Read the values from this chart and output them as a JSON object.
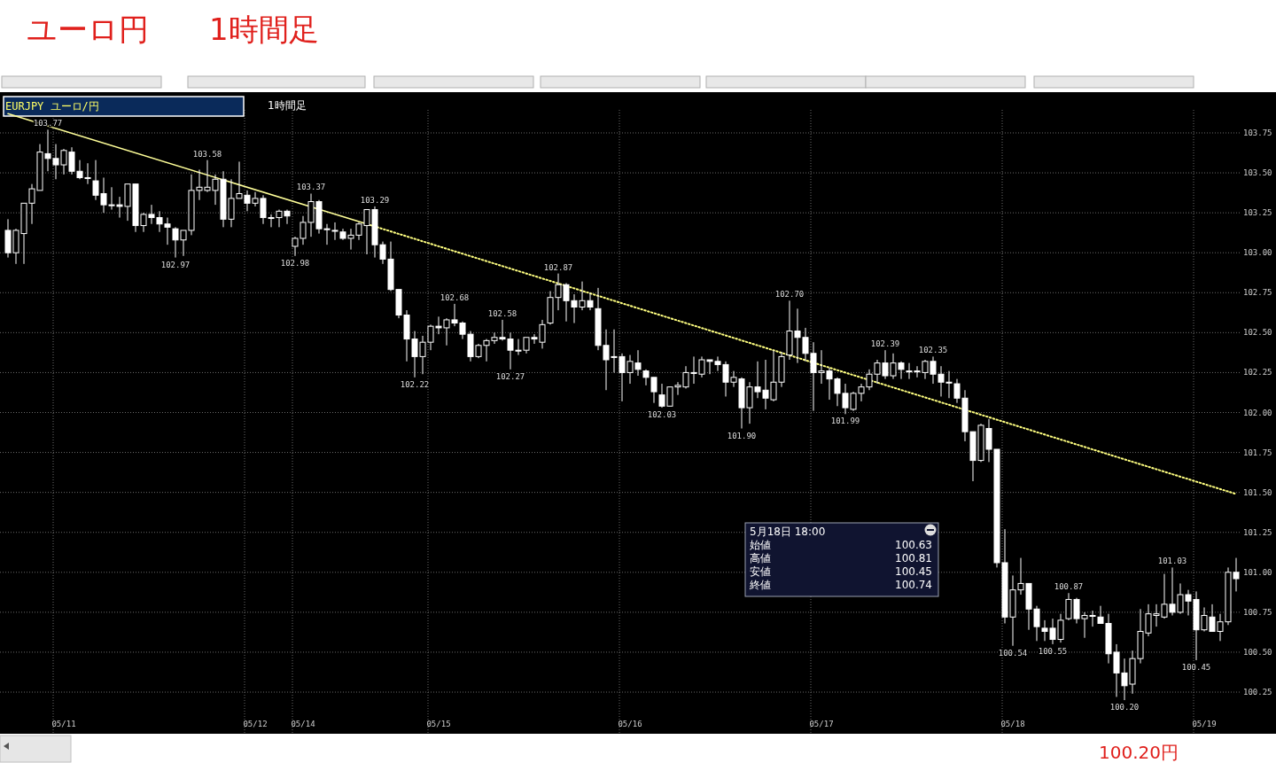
{
  "chart_data": {
    "type": "candlestick",
    "title": "ユーロ円　　1時間足",
    "annotations": [
      "EURJPY ユーロ/円",
      "1時間足",
      "5月18日 18:00",
      "始値 100.63",
      "高値 100.81",
      "安値 100.45",
      "終値 100.74",
      "100.20円"
    ],
    "categories": [
      null,
      null,
      null,
      null,
      null,
      null,
      null,
      "05/11",
      null,
      null,
      null,
      null,
      null,
      null,
      null,
      null,
      null,
      null,
      null,
      null,
      null,
      null,
      null,
      null,
      null,
      null,
      null,
      null,
      null,
      null,
      null,
      "05/12",
      null,
      null,
      null,
      null,
      null,
      "05/14",
      null,
      null,
      null,
      null,
      null,
      null,
      null,
      null,
      null,
      null,
      null,
      null,
      null,
      null,
      null,
      null,
      "05/15",
      null,
      null,
      null,
      null,
      null,
      null,
      null,
      null,
      null,
      null,
      null,
      null,
      null,
      null,
      null,
      null,
      null,
      null,
      null,
      null,
      null,
      null,
      null,
      "05/16",
      null,
      null,
      null,
      null,
      null,
      null,
      null,
      null,
      null,
      null,
      null,
      null,
      null,
      null,
      null,
      null,
      null,
      null,
      null,
      null,
      null,
      null,
      null,
      "05/17",
      null,
      null,
      null,
      null,
      null,
      null,
      null,
      null,
      null,
      null,
      null,
      null,
      null,
      null,
      null,
      null,
      null,
      null,
      null,
      null,
      null,
      null,
      null,
      "05/18",
      null,
      null,
      null,
      null,
      null,
      null,
      null,
      null,
      null,
      null,
      null,
      null,
      null,
      null,
      null,
      null,
      null,
      null,
      null,
      null,
      null,
      null,
      null,
      "05/19",
      null,
      null,
      null,
      null
    ],
    "color": "#ffffff",
    "ohlc": [
      [
        103.14,
        103.21,
        102.97,
        103.0
      ],
      [
        103.0,
        103.15,
        102.93,
        103.14
      ],
      [
        103.12,
        103.31,
        102.93,
        103.31
      ],
      [
        103.31,
        103.43,
        103.18,
        103.4
      ],
      [
        103.39,
        103.68,
        103.39,
        103.63
      ],
      [
        103.62,
        103.77,
        103.51,
        103.59
      ],
      [
        103.59,
        103.68,
        103.46,
        103.55
      ],
      [
        103.55,
        103.65,
        103.49,
        103.64
      ],
      [
        103.63,
        103.66,
        103.49,
        103.51
      ],
      [
        103.51,
        103.58,
        103.46,
        103.47
      ],
      [
        103.47,
        103.56,
        103.43,
        103.47
      ],
      [
        103.45,
        103.58,
        103.33,
        103.36
      ],
      [
        103.37,
        103.47,
        103.25,
        103.3
      ],
      [
        103.3,
        103.41,
        103.27,
        103.3
      ],
      [
        103.3,
        103.35,
        103.22,
        103.29
      ],
      [
        103.29,
        103.43,
        103.2,
        103.43
      ],
      [
        103.43,
        103.43,
        103.13,
        103.17
      ],
      [
        103.17,
        103.25,
        103.13,
        103.24
      ],
      [
        103.24,
        103.3,
        103.18,
        103.22
      ],
      [
        103.22,
        103.26,
        103.13,
        103.18
      ],
      [
        103.18,
        103.22,
        103.05,
        103.16
      ],
      [
        103.15,
        103.16,
        102.97,
        103.08
      ],
      [
        103.08,
        103.14,
        102.98,
        103.14
      ],
      [
        103.14,
        103.49,
        103.11,
        103.39
      ],
      [
        103.39,
        103.52,
        103.33,
        103.41
      ],
      [
        103.39,
        103.58,
        103.38,
        103.41
      ],
      [
        103.39,
        103.49,
        103.3,
        103.46
      ],
      [
        103.46,
        103.51,
        103.16,
        103.21
      ],
      [
        103.21,
        103.46,
        103.16,
        103.34
      ],
      [
        103.34,
        103.57,
        103.34,
        103.37
      ],
      [
        103.36,
        103.39,
        103.26,
        103.31
      ],
      [
        103.31,
        103.38,
        103.29,
        103.34
      ],
      [
        103.34,
        103.36,
        103.18,
        103.22
      ],
      [
        103.22,
        103.24,
        103.16,
        103.22
      ],
      [
        103.22,
        103.27,
        103.16,
        103.26
      ],
      [
        103.26,
        103.27,
        103.18,
        103.23
      ],
      [
        103.04,
        103.1,
        102.98,
        103.09
      ],
      [
        103.09,
        103.23,
        103.05,
        103.19
      ],
      [
        103.19,
        103.37,
        103.1,
        103.32
      ],
      [
        103.32,
        103.33,
        103.12,
        103.15
      ],
      [
        103.15,
        103.18,
        103.05,
        103.15
      ],
      [
        103.14,
        103.19,
        103.08,
        103.14
      ],
      [
        103.13,
        103.15,
        103.08,
        103.09
      ],
      [
        103.09,
        103.15,
        103.02,
        103.11
      ],
      [
        103.11,
        103.19,
        103.08,
        103.18
      ],
      [
        103.17,
        103.27,
        102.99,
        103.27
      ],
      [
        103.27,
        103.29,
        102.97,
        103.05
      ],
      [
        103.05,
        103.07,
        102.93,
        102.96
      ],
      [
        102.96,
        103.07,
        102.76,
        102.77
      ],
      [
        102.77,
        102.77,
        102.59,
        102.61
      ],
      [
        102.61,
        102.64,
        102.32,
        102.46
      ],
      [
        102.46,
        102.51,
        102.22,
        102.35
      ],
      [
        102.35,
        102.48,
        102.24,
        102.44
      ],
      [
        102.44,
        102.55,
        102.39,
        102.54
      ],
      [
        102.54,
        102.6,
        102.49,
        102.53
      ],
      [
        102.53,
        102.59,
        102.42,
        102.58
      ],
      [
        102.58,
        102.68,
        102.54,
        102.56
      ],
      [
        102.56,
        102.57,
        102.46,
        102.49
      ],
      [
        102.49,
        102.51,
        102.32,
        102.35
      ],
      [
        102.35,
        102.43,
        102.34,
        102.42
      ],
      [
        102.42,
        102.46,
        102.32,
        102.45
      ],
      [
        102.45,
        102.5,
        102.43,
        102.47
      ],
      [
        102.47,
        102.58,
        102.45,
        102.46
      ],
      [
        102.46,
        102.5,
        102.27,
        102.39
      ],
      [
        102.39,
        102.46,
        102.36,
        102.39
      ],
      [
        102.39,
        102.47,
        102.37,
        102.47
      ],
      [
        102.47,
        102.49,
        102.43,
        102.46
      ],
      [
        102.44,
        102.58,
        102.4,
        102.55
      ],
      [
        102.56,
        102.76,
        102.55,
        102.72
      ],
      [
        102.72,
        102.87,
        102.64,
        102.8
      ],
      [
        102.8,
        102.81,
        102.57,
        102.7
      ],
      [
        102.7,
        102.74,
        102.56,
        102.66
      ],
      [
        102.66,
        102.82,
        102.64,
        102.7
      ],
      [
        102.7,
        102.75,
        102.64,
        102.66
      ],
      [
        102.65,
        102.78,
        102.39,
        102.42
      ],
      [
        102.42,
        102.52,
        102.14,
        102.33
      ],
      [
        102.35,
        102.52,
        102.25,
        102.35
      ],
      [
        102.35,
        102.37,
        102.07,
        102.25
      ],
      [
        102.25,
        102.36,
        102.18,
        102.32
      ],
      [
        102.31,
        102.39,
        102.23,
        102.27
      ],
      [
        102.26,
        102.27,
        102.17,
        102.22
      ],
      [
        102.22,
        102.22,
        102.06,
        102.13
      ],
      [
        102.11,
        102.18,
        102.03,
        102.04
      ],
      [
        102.04,
        102.16,
        102.04,
        102.16
      ],
      [
        102.16,
        102.19,
        102.11,
        102.17
      ],
      [
        102.16,
        102.29,
        102.15,
        102.25
      ],
      [
        102.25,
        102.35,
        102.18,
        102.25
      ],
      [
        102.24,
        102.35,
        102.22,
        102.33
      ],
      [
        102.33,
        102.33,
        102.24,
        102.32
      ],
      [
        102.32,
        102.35,
        102.26,
        102.3
      ],
      [
        102.3,
        102.32,
        102.1,
        102.19
      ],
      [
        102.19,
        102.26,
        102.16,
        102.22
      ],
      [
        102.21,
        102.22,
        101.9,
        102.03
      ],
      [
        102.03,
        102.19,
        101.93,
        102.16
      ],
      [
        102.16,
        102.32,
        102.09,
        102.13
      ],
      [
        102.14,
        102.33,
        102.02,
        102.09
      ],
      [
        102.08,
        102.39,
        102.07,
        102.19
      ],
      [
        102.19,
        102.38,
        102.16,
        102.35
      ],
      [
        102.36,
        102.7,
        102.33,
        102.51
      ],
      [
        102.51,
        102.65,
        102.31,
        102.47
      ],
      [
        102.47,
        102.53,
        102.32,
        102.37
      ],
      [
        102.37,
        102.44,
        102.01,
        102.25
      ],
      [
        102.25,
        102.39,
        102.18,
        102.26
      ],
      [
        102.26,
        102.28,
        102.08,
        102.21
      ],
      [
        102.21,
        102.22,
        102.04,
        102.12
      ],
      [
        102.12,
        102.18,
        101.99,
        102.03
      ],
      [
        102.02,
        102.13,
        102.01,
        102.12
      ],
      [
        102.12,
        102.18,
        102.07,
        102.16
      ],
      [
        102.16,
        102.27,
        102.14,
        102.24
      ],
      [
        102.24,
        102.33,
        102.18,
        102.31
      ],
      [
        102.31,
        102.39,
        102.21,
        102.23
      ],
      [
        102.23,
        102.37,
        102.21,
        102.31
      ],
      [
        102.31,
        102.32,
        102.21,
        102.27
      ],
      [
        102.26,
        102.31,
        102.21,
        102.26
      ],
      [
        102.26,
        102.29,
        102.22,
        102.26
      ],
      [
        102.25,
        102.33,
        102.21,
        102.32
      ],
      [
        102.32,
        102.35,
        102.18,
        102.24
      ],
      [
        102.24,
        102.29,
        102.1,
        102.19
      ],
      [
        102.19,
        102.26,
        102.09,
        102.19
      ],
      [
        102.18,
        102.21,
        102.06,
        102.09
      ],
      [
        102.09,
        102.14,
        101.82,
        101.88
      ],
      [
        101.88,
        101.88,
        101.57,
        101.7
      ],
      [
        101.7,
        101.93,
        101.69,
        101.92
      ],
      [
        101.9,
        101.96,
        101.69,
        101.77
      ],
      [
        101.77,
        101.77,
        101.03,
        101.06
      ],
      [
        101.06,
        101.27,
        100.68,
        100.72
      ],
      [
        100.72,
        100.98,
        100.54,
        100.89
      ],
      [
        100.89,
        101.09,
        100.86,
        100.93
      ],
      [
        100.93,
        100.93,
        100.64,
        100.77
      ],
      [
        100.77,
        100.79,
        100.57,
        100.66
      ],
      [
        100.65,
        100.7,
        100.57,
        100.63
      ],
      [
        100.65,
        100.71,
        100.55,
        100.58
      ],
      [
        100.58,
        100.74,
        100.56,
        100.7
      ],
      [
        100.71,
        100.87,
        100.7,
        100.83
      ],
      [
        100.83,
        100.84,
        100.68,
        100.71
      ],
      [
        100.71,
        100.75,
        100.59,
        100.73
      ],
      [
        100.73,
        100.76,
        100.66,
        100.73
      ],
      [
        100.72,
        100.79,
        100.68,
        100.68
      ],
      [
        100.68,
        100.74,
        100.43,
        100.49
      ],
      [
        100.5,
        100.55,
        100.22,
        100.37
      ],
      [
        100.37,
        100.46,
        100.2,
        100.29
      ],
      [
        100.3,
        100.51,
        100.24,
        100.46
      ],
      [
        100.46,
        100.77,
        100.43,
        100.63
      ],
      [
        100.62,
        100.8,
        100.6,
        100.74
      ],
      [
        100.73,
        100.8,
        100.66,
        100.74
      ],
      [
        100.72,
        100.99,
        100.71,
        100.8
      ],
      [
        100.8,
        101.03,
        100.73,
        100.75
      ],
      [
        100.75,
        100.93,
        100.74,
        100.86
      ],
      [
        100.86,
        100.89,
        100.73,
        100.82
      ],
      [
        100.83,
        100.88,
        100.45,
        100.64
      ],
      [
        100.64,
        100.78,
        100.63,
        100.73
      ],
      [
        100.72,
        100.8,
        100.63,
        100.63
      ],
      [
        100.63,
        100.74,
        100.57,
        100.69
      ],
      [
        100.69,
        101.03,
        100.67,
        101.0
      ],
      [
        101.0,
        101.09,
        100.88,
        100.96
      ]
    ],
    "value_labels": [
      null,
      null,
      null,
      null,
      null,
      "103.77",
      null,
      null,
      null,
      null,
      null,
      null,
      null,
      null,
      null,
      null,
      null,
      null,
      null,
      null,
      null,
      "102.97",
      null,
      null,
      null,
      "103.58",
      null,
      null,
      null,
      null,
      null,
      null,
      null,
      null,
      null,
      null,
      "102.98",
      null,
      "103.37",
      null,
      null,
      null,
      null,
      null,
      null,
      null,
      "103.29",
      null,
      null,
      null,
      null,
      "102.22",
      null,
      null,
      null,
      null,
      "102.68",
      null,
      null,
      null,
      null,
      null,
      "102.58",
      "102.27",
      null,
      null,
      null,
      null,
      null,
      "102.87",
      null,
      null,
      null,
      null,
      null,
      null,
      null,
      null,
      null,
      null,
      null,
      null,
      "102.03",
      null,
      null,
      null,
      null,
      null,
      null,
      null,
      null,
      null,
      "101.90",
      null,
      null,
      null,
      null,
      null,
      "102.70",
      null,
      null,
      null,
      null,
      null,
      null,
      "101.99",
      null,
      null,
      null,
      null,
      "102.39",
      null,
      null,
      null,
      null,
      null,
      "102.35",
      null,
      null,
      null,
      null,
      null,
      null,
      null,
      null,
      null,
      "100.54",
      null,
      null,
      null,
      null,
      "100.55",
      null,
      "100.87",
      null,
      null,
      null,
      null,
      null,
      null,
      "100.20",
      null,
      null,
      null,
      null,
      null,
      "101.03",
      null,
      null,
      "100.45",
      null,
      null,
      null,
      null,
      null
    ],
    "series": [
      {
        "type": "line",
        "color": "#ffff99",
        "line_style": "solid",
        "values": [
          103.87,
          null,
          null,
          null,
          null,
          null,
          null,
          null,
          null,
          null,
          null,
          null,
          null,
          null,
          null,
          null,
          null,
          null,
          null,
          null,
          null,
          null,
          null,
          null,
          null,
          null,
          null,
          null,
          null,
          null,
          null,
          null,
          null,
          null,
          null,
          null,
          null,
          null,
          null,
          null,
          null,
          null,
          null,
          null,
          null,
          103.18,
          null,
          null,
          null,
          null,
          null,
          null,
          null,
          null,
          null,
          null,
          null,
          null,
          null,
          null,
          null,
          null,
          null,
          null,
          null,
          null,
          null,
          null,
          null,
          null,
          null,
          null,
          null,
          null,
          null,
          null,
          null,
          null,
          null,
          null,
          null,
          null,
          null,
          null,
          null,
          null,
          null,
          null,
          null,
          null,
          null,
          null,
          null,
          null,
          null,
          null,
          null,
          null,
          null,
          null,
          null,
          null,
          null,
          null,
          null,
          null,
          null,
          null,
          null,
          null,
          null,
          null,
          null,
          null,
          null,
          null,
          null,
          null,
          null,
          null,
          null,
          null,
          null,
          null,
          null,
          null,
          null,
          null,
          null,
          null,
          null,
          null,
          null,
          null,
          null,
          null,
          null,
          null,
          null,
          null,
          null,
          null,
          null,
          null,
          null,
          null,
          null,
          null,
          null,
          null,
          null,
          null,
          null,
          null,
          null
        ]
      },
      {
        "type": "line",
        "color": "#ffff80",
        "line_style": "dotted",
        "values": [
          null,
          null,
          null,
          null,
          null,
          null,
          null,
          null,
          null,
          null,
          null,
          null,
          null,
          null,
          null,
          null,
          null,
          null,
          null,
          null,
          null,
          null,
          null,
          null,
          null,
          null,
          null,
          null,
          null,
          null,
          null,
          null,
          null,
          null,
          null,
          null,
          null,
          null,
          null,
          null,
          null,
          null,
          null,
          null,
          null,
          103.18,
          null,
          null,
          null,
          null,
          null,
          null,
          null,
          null,
          null,
          null,
          null,
          null,
          null,
          null,
          null,
          null,
          null,
          null,
          null,
          null,
          null,
          null,
          null,
          null,
          null,
          null,
          null,
          null,
          null,
          null,
          null,
          null,
          null,
          null,
          null,
          null,
          null,
          null,
          null,
          null,
          null,
          null,
          null,
          null,
          null,
          null,
          null,
          null,
          null,
          null,
          null,
          null,
          null,
          null,
          null,
          null,
          null,
          null,
          null,
          null,
          null,
          null,
          null,
          null,
          null,
          null,
          null,
          null,
          null,
          null,
          null,
          null,
          null,
          null,
          null,
          null,
          null,
          null,
          null,
          null,
          null,
          null,
          null,
          null,
          null,
          null,
          null,
          null,
          null,
          null,
          null,
          null,
          null,
          null,
          null,
          null,
          null,
          null,
          null,
          null,
          null,
          null,
          null,
          null,
          null,
          null,
          null,
          null,
          101.49
        ]
      }
    ],
    "ylim": [
      100.0,
      104.0
    ],
    "yticks": [
      {
        "value": 100.25,
        "label": "100.25"
      },
      {
        "value": 100.5,
        "label": "100.50"
      },
      {
        "value": 100.75,
        "label": "100.75"
      },
      {
        "value": 101.0,
        "label": "101.00"
      },
      {
        "value": 101.25,
        "label": "101.25"
      },
      {
        "value": 101.5,
        "label": "101.50"
      },
      {
        "value": 101.75,
        "label": "101.75"
      },
      {
        "value": 102.0,
        "label": "102.00"
      },
      {
        "value": 102.25,
        "label": "102.25"
      },
      {
        "value": 102.5,
        "label": "102.50"
      },
      {
        "value": 102.75,
        "label": "102.75"
      },
      {
        "value": 103.0,
        "label": "103.00"
      },
      {
        "value": 103.25,
        "label": "103.25"
      },
      {
        "value": 103.5,
        "label": "103.50"
      },
      {
        "value": 103.75,
        "label": "103.75"
      }
    ],
    "grid": true
  }
}
